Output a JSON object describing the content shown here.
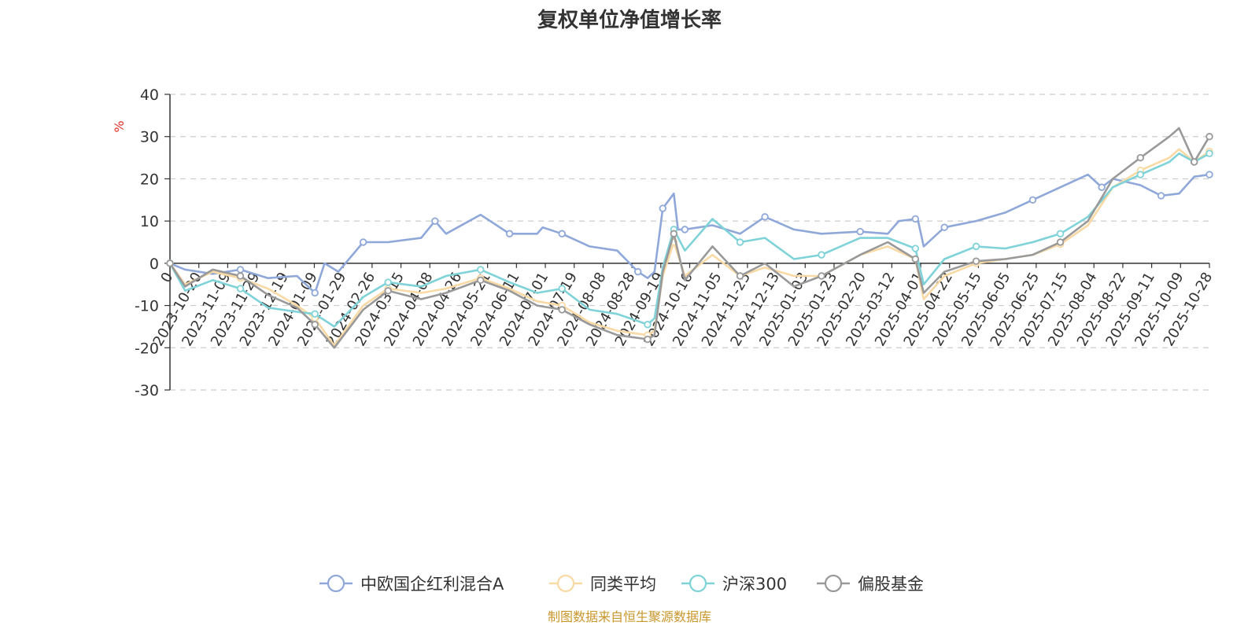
{
  "chart_data": {
    "type": "line",
    "title": "复权单位净值增长率",
    "unit_label": "%",
    "source_note": "制图数据来自恒生聚源数据库",
    "ylim": [
      -30,
      40
    ],
    "y_ticks": [
      40,
      30,
      20,
      10,
      0,
      -10,
      -20,
      -30
    ],
    "grid": true,
    "legend_position": "bottom",
    "x_start": "2023-10-09",
    "x_end": "2025-10-31",
    "x_labels": [
      "0",
      "2023-10-20",
      "2023-11-09",
      "2023-11-29",
      "2023-12-19",
      "2024-01-09",
      "2024-01-29",
      "2024-02-26",
      "2024-03-15",
      "2024-04-08",
      "2024-04-26",
      "2024-05-21",
      "2024-06-11",
      "2024-07-01",
      "2024-07-19",
      "2024-08-08",
      "2024-08-28",
      "2024-09-19",
      "2024-10-16",
      "2024-11-05",
      "2024-11-25",
      "2024-12-13",
      "2025-01-03",
      "2025-01-23",
      "2025-02-20",
      "2025-03-12",
      "2025-04-01",
      "2025-04-22",
      "2025-05-15",
      "2025-06-05",
      "2025-06-25",
      "2025-07-15",
      "2025-08-04",
      "2025-08-22",
      "2025-09-11",
      "2025-10-09",
      "2025-10-28"
    ],
    "series": [
      {
        "name": "中欧国企红利混合A",
        "color": "#8fa8d9",
        "points": [
          [
            "2023-10-09",
            0
          ],
          [
            "2023-10-20",
            -1.5
          ],
          [
            "2023-11-09",
            -2.5
          ],
          [
            "2023-11-29",
            -1.5
          ],
          [
            "2023-12-19",
            -3.5
          ],
          [
            "2024-01-09",
            -3
          ],
          [
            "2024-01-22",
            -7
          ],
          [
            "2024-01-29",
            0
          ],
          [
            "2024-02-08",
            -2
          ],
          [
            "2024-02-26",
            5
          ],
          [
            "2024-03-15",
            5
          ],
          [
            "2024-04-08",
            6
          ],
          [
            "2024-04-18",
            10
          ],
          [
            "2024-04-26",
            7
          ],
          [
            "2024-05-21",
            11.5
          ],
          [
            "2024-06-11",
            7
          ],
          [
            "2024-07-01",
            7
          ],
          [
            "2024-07-05",
            8.5
          ],
          [
            "2024-07-19",
            7
          ],
          [
            "2024-08-08",
            4
          ],
          [
            "2024-08-28",
            3
          ],
          [
            "2024-09-12",
            -2
          ],
          [
            "2024-09-19",
            -3.5
          ],
          [
            "2024-09-24",
            -2
          ],
          [
            "2024-09-30",
            13
          ],
          [
            "2024-10-08",
            16.5
          ],
          [
            "2024-10-11",
            8
          ],
          [
            "2024-10-16",
            8
          ],
          [
            "2024-11-05",
            9
          ],
          [
            "2024-11-25",
            7
          ],
          [
            "2024-12-13",
            11
          ],
          [
            "2025-01-03",
            8
          ],
          [
            "2025-01-23",
            7
          ],
          [
            "2025-02-20",
            7.5
          ],
          [
            "2025-03-12",
            7
          ],
          [
            "2025-03-20",
            10
          ],
          [
            "2025-04-01",
            10.5
          ],
          [
            "2025-04-03",
            10
          ],
          [
            "2025-04-07",
            4
          ],
          [
            "2025-04-22",
            8.5
          ],
          [
            "2025-05-15",
            10
          ],
          [
            "2025-06-05",
            12
          ],
          [
            "2025-06-25",
            15
          ],
          [
            "2025-07-15",
            18
          ],
          [
            "2025-08-04",
            21
          ],
          [
            "2025-08-14",
            18
          ],
          [
            "2025-08-22",
            20
          ],
          [
            "2025-09-11",
            18.5
          ],
          [
            "2025-09-26",
            16
          ],
          [
            "2025-10-09",
            16.5
          ],
          [
            "2025-10-20",
            20.5
          ],
          [
            "2025-10-31",
            21
          ]
        ]
      },
      {
        "name": "同类平均",
        "color": "#f9d9a4",
        "points": [
          [
            "2023-10-09",
            0
          ],
          [
            "2023-10-20",
            -5
          ],
          [
            "2023-11-09",
            -2
          ],
          [
            "2023-11-29",
            -3.5
          ],
          [
            "2023-12-19",
            -6
          ],
          [
            "2024-01-09",
            -10
          ],
          [
            "2024-01-22",
            -13
          ],
          [
            "2024-02-05",
            -19.5
          ],
          [
            "2024-02-26",
            -10
          ],
          [
            "2024-03-15",
            -6
          ],
          [
            "2024-04-08",
            -7
          ],
          [
            "2024-04-26",
            -6
          ],
          [
            "2024-05-21",
            -3.5
          ],
          [
            "2024-06-11",
            -6
          ],
          [
            "2024-07-01",
            -9
          ],
          [
            "2024-07-19",
            -10
          ],
          [
            "2024-08-08",
            -14
          ],
          [
            "2024-08-28",
            -16
          ],
          [
            "2024-09-19",
            -17
          ],
          [
            "2024-09-24",
            -16
          ],
          [
            "2024-09-30",
            -3
          ],
          [
            "2024-10-08",
            5
          ],
          [
            "2024-10-16",
            -3
          ],
          [
            "2024-11-05",
            2
          ],
          [
            "2024-11-25",
            -3
          ],
          [
            "2024-12-13",
            -1
          ],
          [
            "2025-01-03",
            -3
          ],
          [
            "2025-01-23",
            -3
          ],
          [
            "2025-02-20",
            2
          ],
          [
            "2025-03-12",
            4
          ],
          [
            "2025-04-01",
            1
          ],
          [
            "2025-04-07",
            -8.5
          ],
          [
            "2025-04-22",
            -3
          ],
          [
            "2025-05-15",
            0
          ],
          [
            "2025-06-05",
            1
          ],
          [
            "2025-06-25",
            2
          ],
          [
            "2025-07-15",
            4.5
          ],
          [
            "2025-08-04",
            9
          ],
          [
            "2025-08-22",
            18
          ],
          [
            "2025-09-11",
            22
          ],
          [
            "2025-10-02",
            25
          ],
          [
            "2025-10-09",
            27
          ],
          [
            "2025-10-20",
            24
          ],
          [
            "2025-10-31",
            26.5
          ]
        ]
      },
      {
        "name": "沪深300",
        "color": "#7fd3d8",
        "points": [
          [
            "2023-10-09",
            0
          ],
          [
            "2023-10-20",
            -6.5
          ],
          [
            "2023-11-09",
            -4
          ],
          [
            "2023-11-29",
            -6
          ],
          [
            "2023-12-19",
            -10.5
          ],
          [
            "2024-01-09",
            -11.5
          ],
          [
            "2024-01-22",
            -12
          ],
          [
            "2024-02-05",
            -15
          ],
          [
            "2024-02-26",
            -8
          ],
          [
            "2024-03-15",
            -4.5
          ],
          [
            "2024-04-08",
            -5.5
          ],
          [
            "2024-04-26",
            -3
          ],
          [
            "2024-05-21",
            -1.5
          ],
          [
            "2024-06-11",
            -4.5
          ],
          [
            "2024-07-01",
            -7
          ],
          [
            "2024-07-19",
            -6
          ],
          [
            "2024-08-08",
            -11
          ],
          [
            "2024-08-28",
            -12
          ],
          [
            "2024-09-19",
            -14.5
          ],
          [
            "2024-09-24",
            -13
          ],
          [
            "2024-09-30",
            -1
          ],
          [
            "2024-10-08",
            8
          ],
          [
            "2024-10-16",
            3
          ],
          [
            "2024-11-05",
            10.5
          ],
          [
            "2024-11-25",
            5
          ],
          [
            "2024-12-13",
            6
          ],
          [
            "2025-01-03",
            1
          ],
          [
            "2025-01-23",
            2
          ],
          [
            "2025-02-20",
            6
          ],
          [
            "2025-03-12",
            6
          ],
          [
            "2025-04-01",
            3.5
          ],
          [
            "2025-04-07",
            -5
          ],
          [
            "2025-04-22",
            1
          ],
          [
            "2025-05-15",
            4
          ],
          [
            "2025-06-05",
            3.5
          ],
          [
            "2025-06-25",
            5
          ],
          [
            "2025-07-15",
            7
          ],
          [
            "2025-08-04",
            11
          ],
          [
            "2025-08-22",
            18
          ],
          [
            "2025-09-11",
            21
          ],
          [
            "2025-10-02",
            24
          ],
          [
            "2025-10-09",
            26
          ],
          [
            "2025-10-20",
            24
          ],
          [
            "2025-10-31",
            26
          ]
        ]
      },
      {
        "name": "偏股基金",
        "color": "#999999",
        "points": [
          [
            "2023-10-09",
            0
          ],
          [
            "2023-10-20",
            -5.5
          ],
          [
            "2023-11-09",
            -1.5
          ],
          [
            "2023-11-29",
            -3
          ],
          [
            "2023-12-19",
            -7.5
          ],
          [
            "2024-01-09",
            -10.5
          ],
          [
            "2024-01-22",
            -14.5
          ],
          [
            "2024-02-05",
            -20
          ],
          [
            "2024-02-26",
            -11
          ],
          [
            "2024-03-15",
            -6.5
          ],
          [
            "2024-04-08",
            -8.5
          ],
          [
            "2024-04-26",
            -7
          ],
          [
            "2024-05-21",
            -4
          ],
          [
            "2024-06-11",
            -6.5
          ],
          [
            "2024-07-01",
            -10
          ],
          [
            "2024-07-19",
            -11
          ],
          [
            "2024-08-08",
            -14.5
          ],
          [
            "2024-08-28",
            -17
          ],
          [
            "2024-09-19",
            -18
          ],
          [
            "2024-09-24",
            -17
          ],
          [
            "2024-09-30",
            -2
          ],
          [
            "2024-10-08",
            7
          ],
          [
            "2024-10-16",
            -4
          ],
          [
            "2024-11-05",
            4
          ],
          [
            "2024-11-25",
            -3
          ],
          [
            "2024-12-13",
            0
          ],
          [
            "2025-01-03",
            -5.5
          ],
          [
            "2025-01-23",
            -3
          ],
          [
            "2025-02-20",
            2
          ],
          [
            "2025-03-12",
            5
          ],
          [
            "2025-04-01",
            1
          ],
          [
            "2025-04-07",
            -7
          ],
          [
            "2025-04-22",
            -2
          ],
          [
            "2025-05-15",
            0.5
          ],
          [
            "2025-06-05",
            1
          ],
          [
            "2025-06-25",
            2
          ],
          [
            "2025-07-15",
            5
          ],
          [
            "2025-08-04",
            10
          ],
          [
            "2025-08-22",
            20
          ],
          [
            "2025-09-11",
            25
          ],
          [
            "2025-10-02",
            30
          ],
          [
            "2025-10-09",
            32
          ],
          [
            "2025-10-20",
            24
          ],
          [
            "2025-10-31",
            30
          ]
        ]
      }
    ]
  }
}
